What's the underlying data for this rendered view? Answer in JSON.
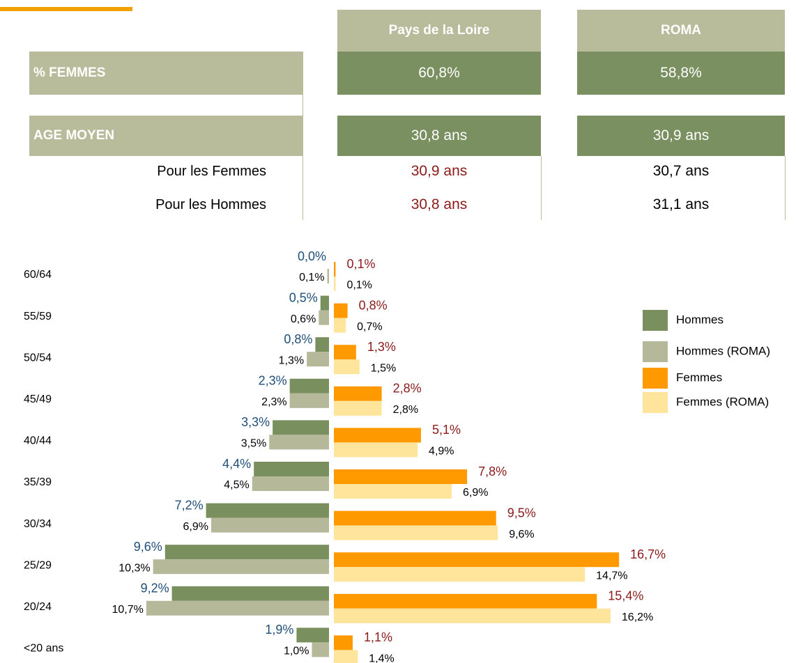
{
  "table": {
    "headers": [
      "Pays de la Loire",
      "ROMA"
    ],
    "rows": [
      {
        "label": "% FEMMES",
        "values": [
          "60,8%",
          "58,8%"
        ]
      },
      {
        "label": "AGE MOYEN",
        "values": [
          "30,8 ans",
          "30,9 ans"
        ]
      },
      {
        "label": "Pour les Femmes",
        "values": [
          "30,9 ans",
          "30,7 ans"
        ]
      },
      {
        "label": "Pour les Hommes",
        "values": [
          "30,8 ans",
          "31,1 ans"
        ]
      }
    ]
  },
  "chart_data": {
    "type": "pyramid",
    "categories": [
      "60/64",
      "55/59",
      "50/54",
      "45/49",
      "40/44",
      "35/39",
      "30/34",
      "25/29",
      "20/24",
      "<20 ans"
    ],
    "legend": "right",
    "series": [
      {
        "name": "Hommes",
        "color": "#7a8f5e",
        "side": "left",
        "label_color": "#1f4e79",
        "values": [
          0.0,
          0.5,
          0.8,
          2.3,
          3.3,
          4.4,
          7.2,
          9.6,
          9.2,
          1.9
        ],
        "value_labels": [
          "0,0%",
          "0,5%",
          "0,8%",
          "2,3%",
          "3,3%",
          "4,4%",
          "7,2%",
          "9,6%",
          "9,2%",
          "1,9%"
        ]
      },
      {
        "name": "Hommes (ROMA)",
        "color": "#b5b99a",
        "side": "left",
        "label_color": "#000000",
        "values": [
          0.1,
          0.6,
          1.3,
          2.3,
          3.5,
          4.5,
          6.9,
          10.3,
          10.7,
          1.0
        ],
        "value_labels": [
          "0,1%",
          "0,6%",
          "1,3%",
          "2,3%",
          "3,5%",
          "4,5%",
          "6,9%",
          "10,3%",
          "10,7%",
          "1,0%"
        ]
      },
      {
        "name": "Femmes",
        "color": "#ff9900",
        "side": "right",
        "label_color": "#8b1a1a",
        "values": [
          0.1,
          0.8,
          1.3,
          2.8,
          5.1,
          7.8,
          9.5,
          16.7,
          15.4,
          1.1
        ],
        "value_labels": [
          "0,1%",
          "0,8%",
          "1,3%",
          "2,8%",
          "5,1%",
          "7,8%",
          "9,5%",
          "16,7%",
          "15,4%",
          "1,1%"
        ]
      },
      {
        "name": "Femmes (ROMA)",
        "color": "#ffe49b",
        "side": "right",
        "label_color": "#000000",
        "values": [
          0.1,
          0.7,
          1.5,
          2.8,
          4.9,
          6.9,
          9.6,
          14.7,
          16.2,
          1.4
        ],
        "value_labels": [
          "0,1%",
          "0,7%",
          "1,5%",
          "2,8%",
          "4,9%",
          "6,9%",
          "9,6%",
          "14,7%",
          "16,2%",
          "1,4%"
        ]
      }
    ]
  }
}
